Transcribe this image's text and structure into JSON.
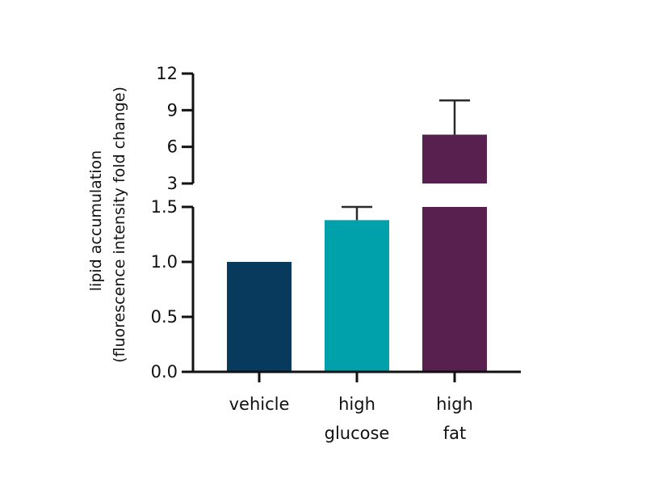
{
  "chart_data": {
    "type": "bar",
    "categories": [
      [
        "vehicle"
      ],
      [
        "high",
        "glucose"
      ],
      [
        "high",
        "fat"
      ]
    ],
    "values": [
      1.0,
      1.38,
      7.0
    ],
    "error_upper": [
      0,
      1.5,
      9.8
    ],
    "colors": [
      "#073a5c",
      "#00a1ab",
      "#58204f"
    ],
    "ylabel_lines": [
      "lipid accumulation",
      "(fluorescence intensity fold change)"
    ],
    "axis": {
      "broken": true,
      "lower_range": [
        0,
        1.5
      ],
      "lower_ticks": [
        "0.0",
        "0.5",
        "1.0",
        "1.5"
      ],
      "upper_range": [
        3,
        12
      ],
      "upper_ticks": [
        "3",
        "6",
        "9",
        "12"
      ]
    },
    "grid": false,
    "legend": "none"
  }
}
